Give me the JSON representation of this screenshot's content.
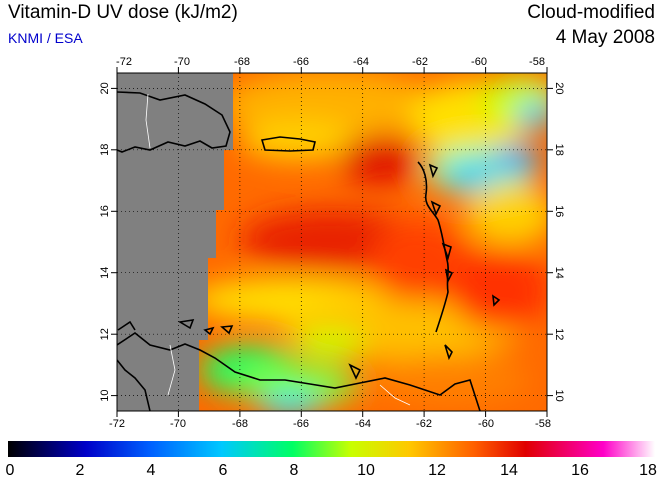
{
  "header": {
    "title": "Vitamin-D UV dose (kJ/m2)",
    "subtitle": "KNMI / ESA",
    "product": "Cloud-modified",
    "date": "4 May 2008"
  },
  "map": {
    "lon_range": [
      -72,
      -58
    ],
    "lat_range": [
      9.5,
      20.5
    ],
    "lon_ticks": [
      "-72",
      "-70",
      "-68",
      "-66",
      "-64",
      "-62",
      "-60",
      "-58"
    ],
    "lat_ticks": [
      "10",
      "12",
      "14",
      "16",
      "18",
      "20"
    ],
    "no_data_color": "#808080",
    "coastline_color": "#000000",
    "border_color": "#ffffff",
    "gridlines": "dotted"
  },
  "colorbar": {
    "range": [
      0,
      18
    ],
    "labels": [
      "0",
      "2",
      "4",
      "6",
      "8",
      "10",
      "12",
      "14",
      "16",
      "18"
    ],
    "colors": [
      "#000000",
      "#0000c8",
      "#0060ff",
      "#00c8ff",
      "#00ff64",
      "#c8ff00",
      "#ffc800",
      "#ff6000",
      "#e00000",
      "#ff00c8",
      "#ffffff"
    ]
  }
}
